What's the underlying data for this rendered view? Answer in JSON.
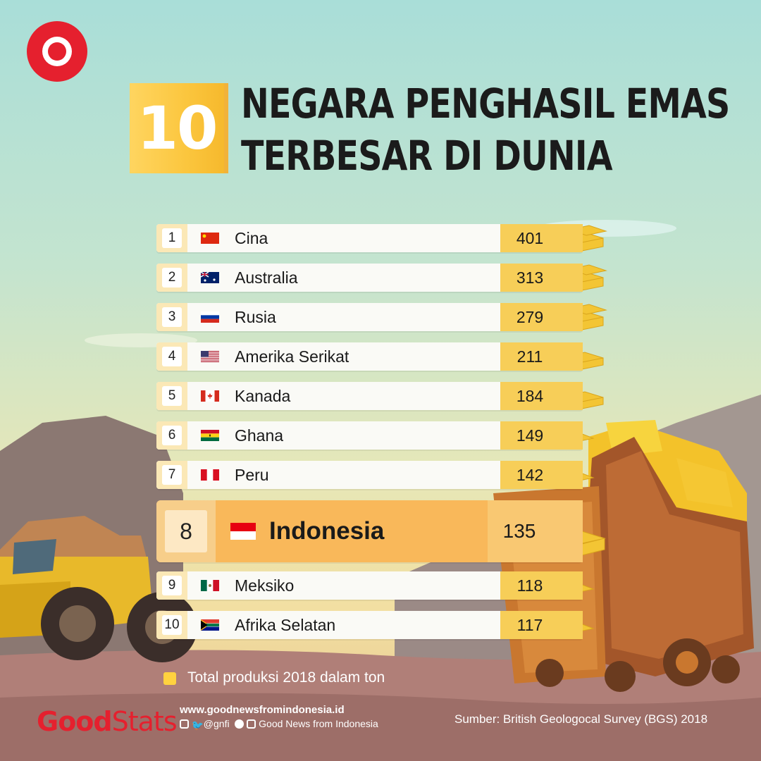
{
  "title": {
    "number": "10",
    "line1": "NEGARA PENGHASIL EMAS",
    "line2": "TERBESAR DI DUNIA"
  },
  "chart_data": {
    "type": "table",
    "columns": [
      "rank",
      "country",
      "value"
    ],
    "rows": [
      {
        "rank": "1",
        "country": "Cina",
        "value": 401
      },
      {
        "rank": "2",
        "country": "Australia",
        "value": 313
      },
      {
        "rank": "3",
        "country": "Rusia",
        "value": 279
      },
      {
        "rank": "4",
        "country": "Amerika Serikat",
        "value": 211
      },
      {
        "rank": "5",
        "country": "Kanada",
        "value": 184
      },
      {
        "rank": "6",
        "country": "Ghana",
        "value": 149
      },
      {
        "rank": "7",
        "country": "Peru",
        "value": 142
      },
      {
        "rank": "8",
        "country": "Indonesia",
        "value": 135,
        "highlighted": true
      },
      {
        "rank": "9",
        "country": "Meksiko",
        "value": 118
      },
      {
        "rank": "10",
        "country": "Afrika Selatan",
        "value": 117
      }
    ]
  },
  "legend": {
    "label": "Total produksi 2018 dalam ton",
    "color": "#ffd23f"
  },
  "footer": {
    "brand_good": "Good",
    "brand_stats": "Stats",
    "website": "www.goodnewsfromindonesia.id",
    "handle": "@gnfi",
    "channel": "Good News from Indonesia",
    "source": "Sumber: British Geologocal Survey (BGS) 2018"
  },
  "colors": {
    "accent_red": "#e5202e",
    "gold": "#f7ce58",
    "highlight": "#f9b85a"
  }
}
